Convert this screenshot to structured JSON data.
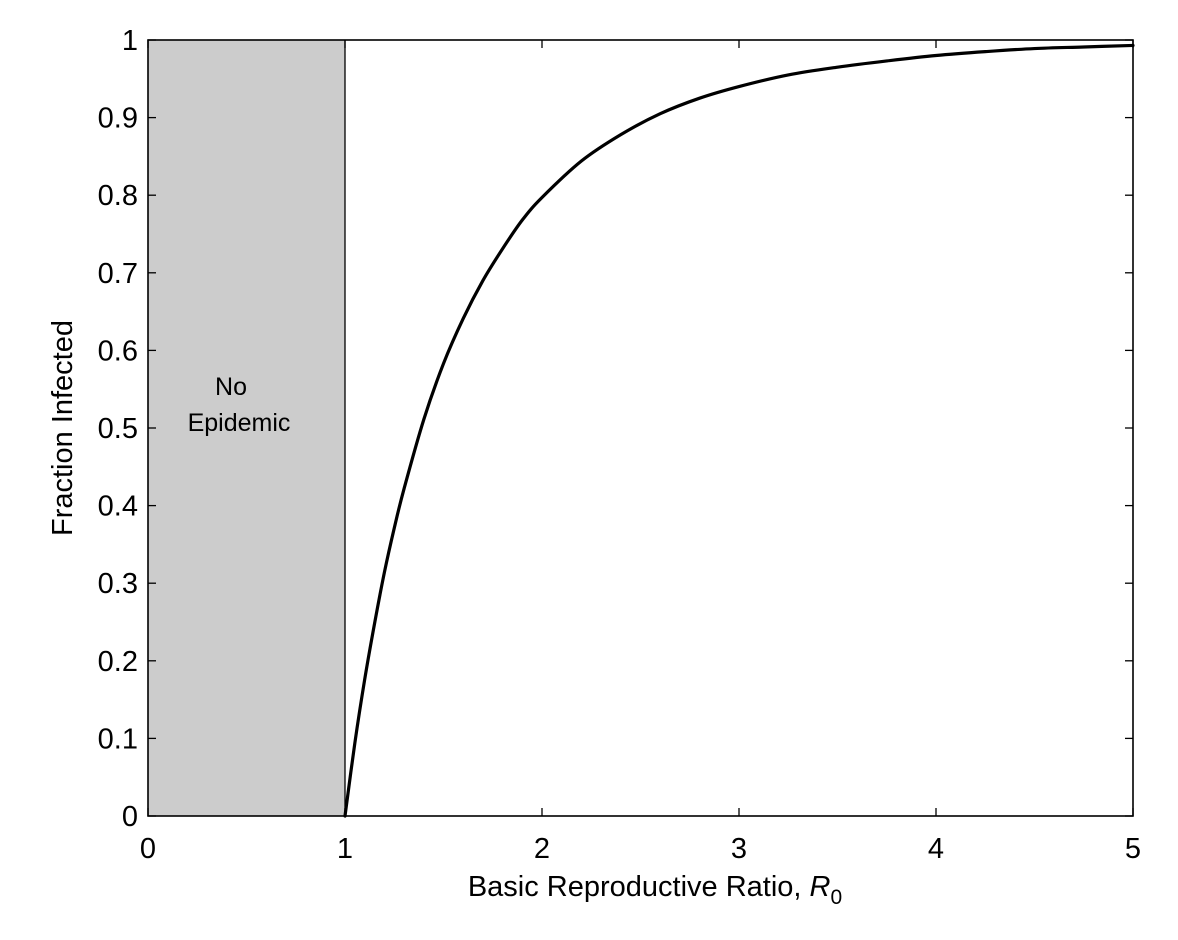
{
  "chart_data": {
    "type": "line",
    "title": "",
    "xlabel": "Basic Reproductive Ratio, ",
    "xlabel_symbol": "R",
    "xlabel_subscript": "0",
    "ylabel": "Fraction Infected",
    "xlim": [
      0,
      5
    ],
    "ylim": [
      0,
      1
    ],
    "xticks": [
      0,
      1,
      2,
      3,
      4,
      5
    ],
    "xtick_labels": [
      "0",
      "1",
      "2",
      "3",
      "4",
      "5"
    ],
    "yticks": [
      0,
      0.1,
      0.2,
      0.3,
      0.4,
      0.5,
      0.6,
      0.7,
      0.8,
      0.9,
      1
    ],
    "ytick_labels": [
      "0",
      "0.1",
      "0.2",
      "0.3",
      "0.4",
      "0.5",
      "0.6",
      "0.7",
      "0.8",
      "0.9",
      "1"
    ],
    "grid": false,
    "legend": "none",
    "shaded_region": {
      "x_range": [
        0,
        1
      ],
      "label_line1": "No",
      "label_line2": "Epidemic",
      "color": "#cccccc"
    },
    "series": [
      {
        "color": "#000000",
        "x": [
          1,
          1.05,
          1.1,
          1.15,
          1.2,
          1.25,
          1.3,
          1.4,
          1.5,
          1.6,
          1.7,
          1.8,
          1.9,
          2,
          2.2,
          2.4,
          2.6,
          2.8,
          3,
          3.25,
          3.5,
          3.75,
          4,
          4.25,
          4.5,
          4.75,
          5
        ],
        "values": [
          0,
          0.094,
          0.176,
          0.248,
          0.314,
          0.371,
          0.422,
          0.511,
          0.583,
          0.641,
          0.69,
          0.731,
          0.768,
          0.797,
          0.844,
          0.878,
          0.905,
          0.925,
          0.94,
          0.955,
          0.965,
          0.973,
          0.98,
          0.985,
          0.989,
          0.991,
          0.993
        ]
      }
    ]
  }
}
